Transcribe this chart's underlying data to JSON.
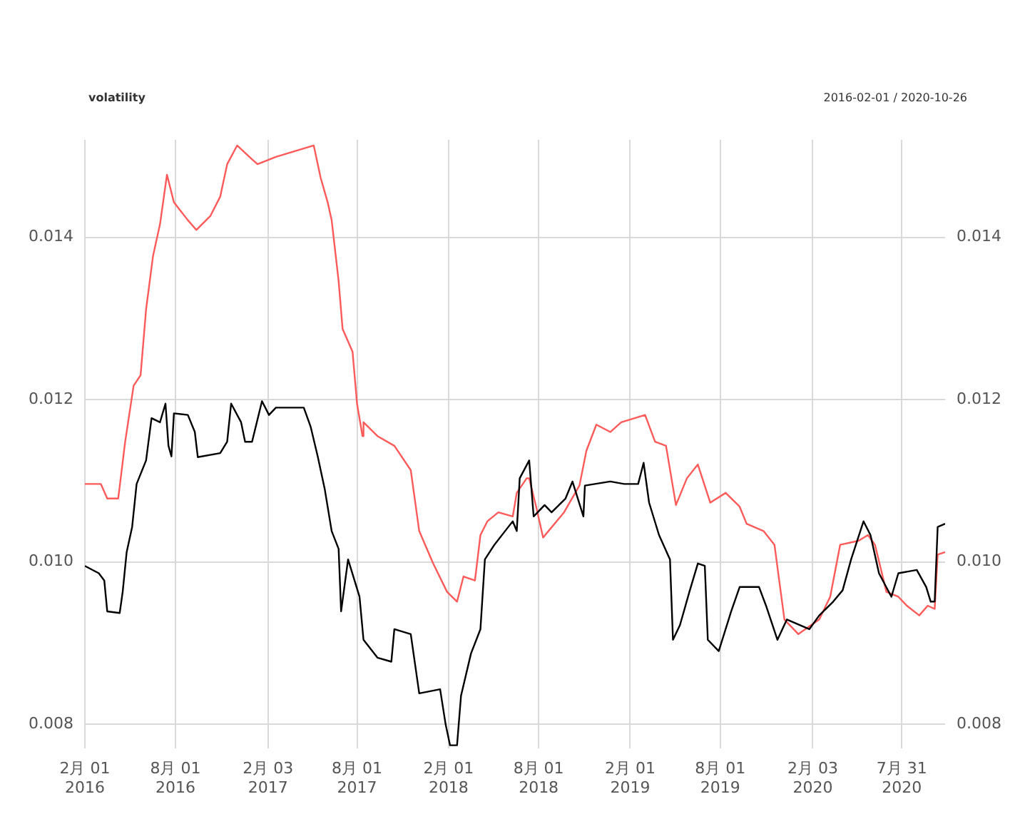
{
  "chart_data": {
    "type": "line",
    "title": "volatility",
    "subtitle": "2016-02-01 / 2020-10-26",
    "xlim": [
      "2016-02-01",
      "2020-10-26"
    ],
    "xticks": [
      {
        "value": "2016-02-01",
        "label": "2月 01\n2016"
      },
      {
        "value": "2016-08-01",
        "label": "8月 01\n2016"
      },
      {
        "value": "2017-02-03",
        "label": "2月 03\n2017"
      },
      {
        "value": "2017-08-01",
        "label": "8月 01\n2017"
      },
      {
        "value": "2018-02-01",
        "label": "2月 01\n2018"
      },
      {
        "value": "2018-08-01",
        "label": "8月 01\n2018"
      },
      {
        "value": "2019-02-01",
        "label": "2月 01\n2019"
      },
      {
        "value": "2019-08-01",
        "label": "8月 01\n2019"
      },
      {
        "value": "2020-02-03",
        "label": "2月 03\n2020"
      },
      {
        "value": "2020-07-31",
        "label": "7月 31\n2020"
      }
    ],
    "ylim": [
      0.0077,
      0.0152
    ],
    "yticks": [
      {
        "value": 0.008,
        "label": "0.008"
      },
      {
        "value": 0.01,
        "label": "0.010"
      },
      {
        "value": 0.012,
        "label": "0.012"
      },
      {
        "value": 0.014,
        "label": "0.014"
      }
    ],
    "y2lim": [
      0.0077,
      0.0152
    ],
    "y2ticks": [
      {
        "value": 0.008,
        "label": "0.008"
      },
      {
        "value": 0.01,
        "label": "0.010"
      },
      {
        "value": 0.012,
        "label": "0.012"
      },
      {
        "value": 0.014,
        "label": "0.014"
      }
    ],
    "grid": true,
    "legend": false,
    "marker": "none",
    "line_style": "solid",
    "series": [
      {
        "color": "#000000",
        "x": [
          "2016-02-01",
          "2016-02-29",
          "2016-03-11",
          "2016-03-17",
          "2016-04-11",
          "2016-04-17",
          "2016-04-25",
          "2016-05-06",
          "2016-05-15",
          "2016-06-03",
          "2016-06-14",
          "2016-07-01",
          "2016-07-12",
          "2016-07-18",
          "2016-07-24",
          "2016-07-29",
          "2016-08-26",
          "2016-09-09",
          "2016-09-15",
          "2016-10-30",
          "2016-11-13",
          "2016-11-21",
          "2016-12-11",
          "2016-12-19",
          "2017-01-02",
          "2017-01-22",
          "2017-02-05",
          "2017-02-19",
          "2017-04-16",
          "2017-04-30",
          "2017-05-14",
          "2017-05-28",
          "2017-06-11",
          "2017-06-25",
          "2017-06-30",
          "2017-07-14",
          "2017-08-06",
          "2017-08-14",
          "2017-09-11",
          "2017-10-09",
          "2017-10-15",
          "2017-11-17",
          "2017-12-04",
          "2018-01-15",
          "2018-01-26",
          "2018-02-04",
          "2018-02-18",
          "2018-02-26",
          "2018-03-18",
          "2018-04-06",
          "2018-04-15",
          "2018-05-04",
          "2018-06-01",
          "2018-06-10",
          "2018-06-18",
          "2018-06-24",
          "2018-07-13",
          "2018-07-22",
          "2018-08-13",
          "2018-08-27",
          "2018-09-24",
          "2018-10-08",
          "2018-10-30",
          "2018-11-02",
          "2018-12-23",
          "2019-01-20",
          "2019-02-17",
          "2019-02-28",
          "2019-03-11",
          "2019-03-31",
          "2019-04-22",
          "2019-04-28",
          "2019-05-12",
          "2019-05-31",
          "2019-06-17",
          "2019-07-01",
          "2019-07-07",
          "2019-07-29",
          "2019-08-23",
          "2019-09-09",
          "2019-10-18",
          "2019-11-01",
          "2019-11-24",
          "2019-12-13",
          "2020-01-27",
          "2020-02-16",
          "2020-03-15",
          "2020-04-03",
          "2020-04-20",
          "2020-05-15",
          "2020-05-29",
          "2020-06-15",
          "2020-07-10",
          "2020-07-24",
          "2020-08-30",
          "2020-09-18",
          "2020-09-27",
          "2020-10-05",
          "2020-10-11",
          "2020-10-26"
        ],
        "values": [
          0.00995,
          0.00986,
          0.00977,
          0.00939,
          0.00937,
          0.00963,
          0.01012,
          0.01043,
          0.01096,
          0.01125,
          0.01177,
          0.01172,
          0.01195,
          0.01143,
          0.0113,
          0.01183,
          0.01181,
          0.0116,
          0.01129,
          0.01134,
          0.01148,
          0.01195,
          0.01172,
          0.01148,
          0.01148,
          0.01198,
          0.01181,
          0.0119,
          0.0119,
          0.01166,
          0.0113,
          0.0109,
          0.01038,
          0.01016,
          0.00939,
          0.01003,
          0.00957,
          0.00904,
          0.00882,
          0.00877,
          0.00917,
          0.00911,
          0.00838,
          0.00843,
          0.008,
          0.00774,
          0.00774,
          0.00835,
          0.00887,
          0.00917,
          0.01003,
          0.01021,
          0.01043,
          0.0105,
          0.01038,
          0.01103,
          0.01125,
          0.01056,
          0.0107,
          0.01061,
          0.01078,
          0.01099,
          0.01056,
          0.01094,
          0.01099,
          0.01096,
          0.01096,
          0.01122,
          0.01073,
          0.01033,
          0.01003,
          0.00904,
          0.00922,
          0.00963,
          0.00998,
          0.00995,
          0.00904,
          0.0089,
          0.00939,
          0.00969,
          0.00969,
          0.00946,
          0.00904,
          0.00929,
          0.00917,
          0.00934,
          0.00951,
          0.00965,
          0.01003,
          0.0105,
          0.01033,
          0.00986,
          0.00957,
          0.00986,
          0.0099,
          0.00969,
          0.00951,
          0.00951,
          0.01043,
          0.01047
        ]
      },
      {
        "color": "#ff5a5a",
        "x": [
          "2016-02-01",
          "2016-03-04",
          "2016-03-17",
          "2016-04-08",
          "2016-04-22",
          "2016-05-09",
          "2016-05-23",
          "2016-06-03",
          "2016-06-17",
          "2016-07-01",
          "2016-07-15",
          "2016-07-29",
          "2016-08-26",
          "2016-09-12",
          "2016-10-10",
          "2016-10-30",
          "2016-11-13",
          "2016-12-03",
          "2017-01-02",
          "2017-01-13",
          "2017-02-19",
          "2017-05-06",
          "2017-05-20",
          "2017-06-03",
          "2017-06-11",
          "2017-06-25",
          "2017-07-03",
          "2017-07-23",
          "2017-08-01",
          "2017-08-12",
          "2017-08-14",
          "2017-09-11",
          "2017-10-15",
          "2017-11-17",
          "2017-12-04",
          "2018-01-01",
          "2018-01-29",
          "2018-02-18",
          "2018-03-03",
          "2018-03-26",
          "2018-04-06",
          "2018-04-20",
          "2018-05-12",
          "2018-06-10",
          "2018-06-18",
          "2018-07-08",
          "2018-07-13",
          "2018-07-27",
          "2018-08-10",
          "2018-09-21",
          "2018-10-22",
          "2018-11-05",
          "2018-11-25",
          "2018-12-23",
          "2019-01-14",
          "2019-03-03",
          "2019-03-23",
          "2019-04-14",
          "2019-05-04",
          "2019-05-26",
          "2019-06-17",
          "2019-07-12",
          "2019-08-12",
          "2019-09-09",
          "2019-09-23",
          "2019-10-27",
          "2019-11-18",
          "2019-12-08",
          "2020-01-05",
          "2020-02-16",
          "2020-03-09",
          "2020-03-29",
          "2020-05-05",
          "2020-05-24",
          "2020-06-07",
          "2020-06-30",
          "2020-07-24",
          "2020-08-10",
          "2020-09-04",
          "2020-09-21",
          "2020-10-05",
          "2020-10-11",
          "2020-10-26"
        ],
        "values": [
          0.01096,
          0.01096,
          0.01078,
          0.01078,
          0.01148,
          0.01217,
          0.0123,
          0.01311,
          0.01377,
          0.01416,
          0.01477,
          0.01443,
          0.01421,
          0.01409,
          0.01426,
          0.0145,
          0.0149,
          0.01513,
          0.01496,
          0.0149,
          0.01499,
          0.01513,
          0.01473,
          0.01443,
          0.01421,
          0.01346,
          0.01287,
          0.01259,
          0.01195,
          0.01155,
          0.01172,
          0.01155,
          0.01143,
          0.01113,
          0.01038,
          0.00998,
          0.00963,
          0.00951,
          0.00982,
          0.00977,
          0.01033,
          0.0105,
          0.01061,
          0.01056,
          0.01085,
          0.01103,
          0.01103,
          0.01068,
          0.0103,
          0.01061,
          0.01094,
          0.01137,
          0.01169,
          0.0116,
          0.01172,
          0.01181,
          0.01148,
          0.01143,
          0.0107,
          0.01103,
          0.0112,
          0.01073,
          0.01085,
          0.01068,
          0.01047,
          0.01038,
          0.01021,
          0.00929,
          0.00911,
          0.00929,
          0.00957,
          0.01021,
          0.01026,
          0.01033,
          0.01021,
          0.00963,
          0.00957,
          0.00946,
          0.00934,
          0.00946,
          0.00942,
          0.01009,
          0.01012
        ]
      }
    ]
  }
}
